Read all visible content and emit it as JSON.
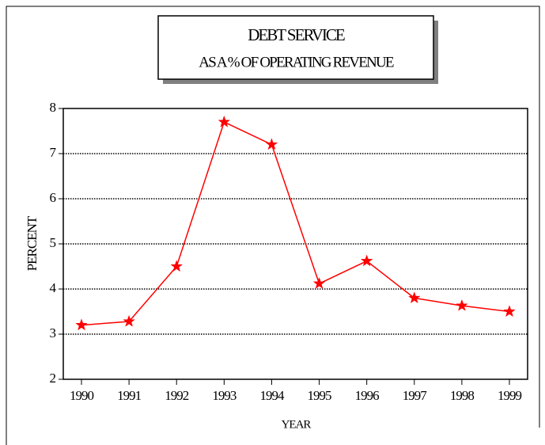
{
  "chart_data": {
    "type": "line",
    "title": "DEBT SERVICE",
    "subtitle": "AS A % OF OPERATING REVENUE",
    "y_label": "PERCENT",
    "x_label": "YEAR",
    "categories": [
      "1990",
      "1991",
      "1992",
      "1993",
      "1994",
      "1995",
      "1996",
      "1997",
      "1998",
      "1999"
    ],
    "series": [
      {
        "name": "Debt service",
        "color": "#ff0000",
        "values": [
          3.2,
          3.28,
          4.5,
          7.7,
          7.2,
          4.12,
          4.62,
          3.8,
          3.63,
          3.5
        ]
      }
    ],
    "ylim": [
      2,
      8
    ],
    "yticks": [
      2,
      3,
      4,
      5,
      6,
      7,
      8
    ],
    "grid": true
  }
}
